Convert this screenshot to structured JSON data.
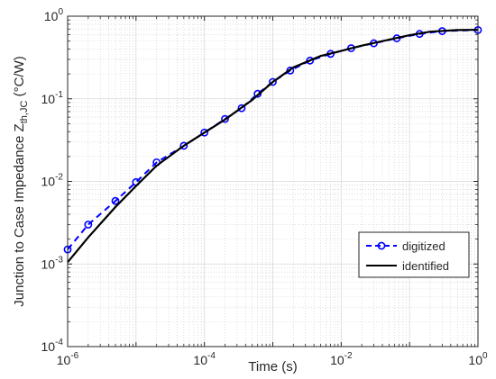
{
  "chart_data": {
    "type": "line",
    "title": "",
    "xlabel": "Time (s)",
    "ylabel_main": "Junction to Case Impedance Z",
    "ylabel_subscript": "th,JC",
    "ylabel_units": " (°C/W)",
    "xscale": "log",
    "yscale": "log",
    "xlim": [
      1e-06,
      1
    ],
    "ylim": [
      0.0001,
      1
    ],
    "grid": true,
    "minor_grid": true,
    "legend_placement": "lower-right",
    "x_ticks": [
      {
        "value": 1e-06,
        "base": "10",
        "exp": "-6"
      },
      {
        "value": 0.0001,
        "base": "10",
        "exp": "-4"
      },
      {
        "value": 0.01,
        "base": "10",
        "exp": "-2"
      },
      {
        "value": 1,
        "base": "10",
        "exp": "0"
      }
    ],
    "y_ticks": [
      {
        "value": 0.0001,
        "base": "10",
        "exp": "-4"
      },
      {
        "value": 0.001,
        "base": "10",
        "exp": "-3"
      },
      {
        "value": 0.01,
        "base": "10",
        "exp": "-2"
      },
      {
        "value": 0.1,
        "base": "10",
        "exp": "-1"
      },
      {
        "value": 1,
        "base": "10",
        "exp": "0"
      }
    ],
    "series": [
      {
        "name": "digitized",
        "color": "#0000ff",
        "line": "dashed",
        "marker": "circle",
        "x": [
          1e-06,
          2e-06,
          5e-06,
          1e-05,
          2e-05,
          5e-05,
          0.0001,
          0.0002,
          0.00035,
          0.0006,
          0.001,
          0.0018,
          0.0035,
          0.007,
          0.014,
          0.03,
          0.065,
          0.14,
          0.3,
          1.0
        ],
        "y": [
          0.0015,
          0.003,
          0.0058,
          0.0098,
          0.017,
          0.027,
          0.039,
          0.057,
          0.077,
          0.115,
          0.16,
          0.22,
          0.29,
          0.35,
          0.41,
          0.47,
          0.54,
          0.61,
          0.66,
          0.68
        ]
      },
      {
        "name": "identified",
        "color": "#000000",
        "line": "solid",
        "marker": "none",
        "x": [
          1e-06,
          2e-06,
          5e-06,
          1e-05,
          2e-05,
          5e-05,
          0.0001,
          0.0002,
          0.0005,
          0.001,
          0.002,
          0.005,
          0.01,
          0.02,
          0.05,
          0.1,
          0.2,
          0.5,
          1.0
        ],
        "y": [
          0.00105,
          0.0021,
          0.0049,
          0.0088,
          0.0155,
          0.027,
          0.039,
          0.056,
          0.097,
          0.16,
          0.24,
          0.33,
          0.38,
          0.44,
          0.52,
          0.59,
          0.65,
          0.68,
          0.685
        ]
      }
    ]
  }
}
